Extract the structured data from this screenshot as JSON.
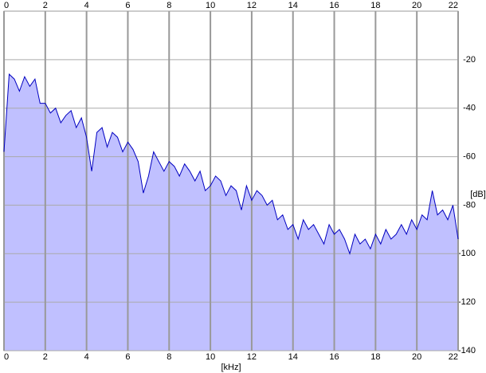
{
  "chart_data": {
    "type": "area",
    "xlabel": "[kHz]",
    "ylabel": "[dB]",
    "xlim": [
      0,
      22
    ],
    "ylim": [
      -140,
      0
    ],
    "xticks": [
      0,
      2,
      4,
      6,
      8,
      10,
      12,
      14,
      16,
      18,
      20,
      22
    ],
    "yticks": [
      -20,
      -40,
      -60,
      -80,
      -100,
      -120,
      -140
    ],
    "grid": true,
    "line_color": "#0000c0",
    "fill_color": "#c0c0ff",
    "x": [
      0,
      0.25,
      0.5,
      0.75,
      1,
      1.25,
      1.5,
      1.75,
      2,
      2.25,
      2.5,
      2.75,
      3,
      3.25,
      3.5,
      3.75,
      4,
      4.25,
      4.5,
      4.75,
      5,
      5.25,
      5.5,
      5.75,
      6,
      6.25,
      6.5,
      6.75,
      7,
      7.25,
      7.5,
      7.75,
      8,
      8.25,
      8.5,
      8.75,
      9,
      9.25,
      9.5,
      9.75,
      10,
      10.25,
      10.5,
      10.75,
      11,
      11.25,
      11.5,
      11.75,
      12,
      12.25,
      12.5,
      12.75,
      13,
      13.25,
      13.5,
      13.75,
      14,
      14.25,
      14.5,
      14.75,
      15,
      15.25,
      15.5,
      15.75,
      16,
      16.25,
      16.5,
      16.75,
      17,
      17.25,
      17.5,
      17.75,
      18,
      18.25,
      18.5,
      18.75,
      19,
      19.25,
      19.5,
      19.75,
      20,
      20.25,
      20.5,
      20.75,
      21,
      21.25,
      21.5,
      21.75,
      22
    ],
    "values": [
      -58,
      -26,
      -28,
      -33,
      -27,
      -31,
      -28,
      -38,
      -38,
      -42,
      -40,
      -46,
      -43,
      -41,
      -48,
      -44,
      -52,
      -66,
      -50,
      -48,
      -56,
      -50,
      -52,
      -58,
      -54,
      -57,
      -62,
      -75,
      -68,
      -58,
      -62,
      -66,
      -62,
      -64,
      -68,
      -63,
      -66,
      -70,
      -66,
      -74,
      -72,
      -68,
      -70,
      -76,
      -72,
      -74,
      -82,
      -72,
      -78,
      -74,
      -76,
      -80,
      -78,
      -86,
      -84,
      -90,
      -88,
      -94,
      -86,
      -90,
      -88,
      -92,
      -96,
      -88,
      -92,
      -90,
      -94,
      -100,
      -92,
      -96,
      -94,
      -98,
      -92,
      -96,
      -90,
      -94,
      -92,
      -88,
      -92,
      -86,
      -90,
      -84,
      -86,
      -74,
      -84,
      -82,
      -86,
      -80,
      -94
    ]
  }
}
